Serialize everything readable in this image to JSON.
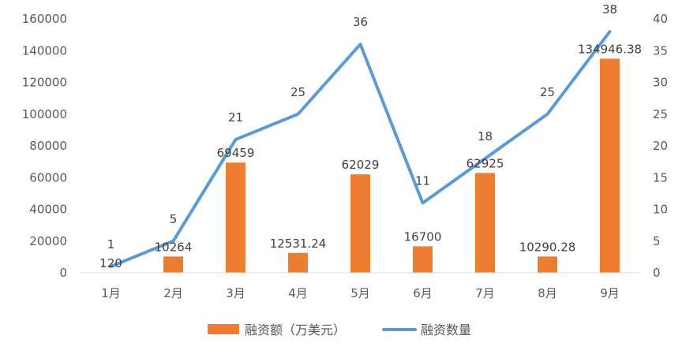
{
  "chart_data": {
    "type": "bar+line",
    "categories": [
      "1月",
      "2月",
      "3月",
      "4月",
      "5月",
      "6月",
      "7月",
      "8月",
      "9月"
    ],
    "series": [
      {
        "name": "融资额（万美元）",
        "type": "bar",
        "axis": "left",
        "values": [
          120,
          10264,
          69459,
          12531.24,
          62029,
          16700,
          62925,
          10290.28,
          134946.38
        ],
        "labels": [
          "120",
          "10264",
          "69459",
          "12531.24",
          "62029",
          "16700",
          "62925",
          "10290.28",
          "134946.38"
        ],
        "color": "#ED7D31"
      },
      {
        "name": "融资数量",
        "type": "line",
        "axis": "right",
        "values": [
          1,
          5,
          21,
          25,
          36,
          11,
          18,
          25,
          38
        ],
        "labels": [
          "1",
          "5",
          "21",
          "25",
          "36",
          "11",
          "18",
          "25",
          "38"
        ],
        "color": "#5B9BD5"
      }
    ],
    "y_left": {
      "ylim": [
        0,
        160000
      ],
      "ticks": [
        "0",
        "20000",
        "40000",
        "60000",
        "80000",
        "100000",
        "120000",
        "140000",
        "160000"
      ]
    },
    "y_right": {
      "ylim": [
        0,
        40
      ],
      "ticks": [
        "0",
        "5",
        "10",
        "15",
        "20",
        "25",
        "30",
        "35",
        "40"
      ]
    },
    "grid": false,
    "legend": "bottom"
  }
}
